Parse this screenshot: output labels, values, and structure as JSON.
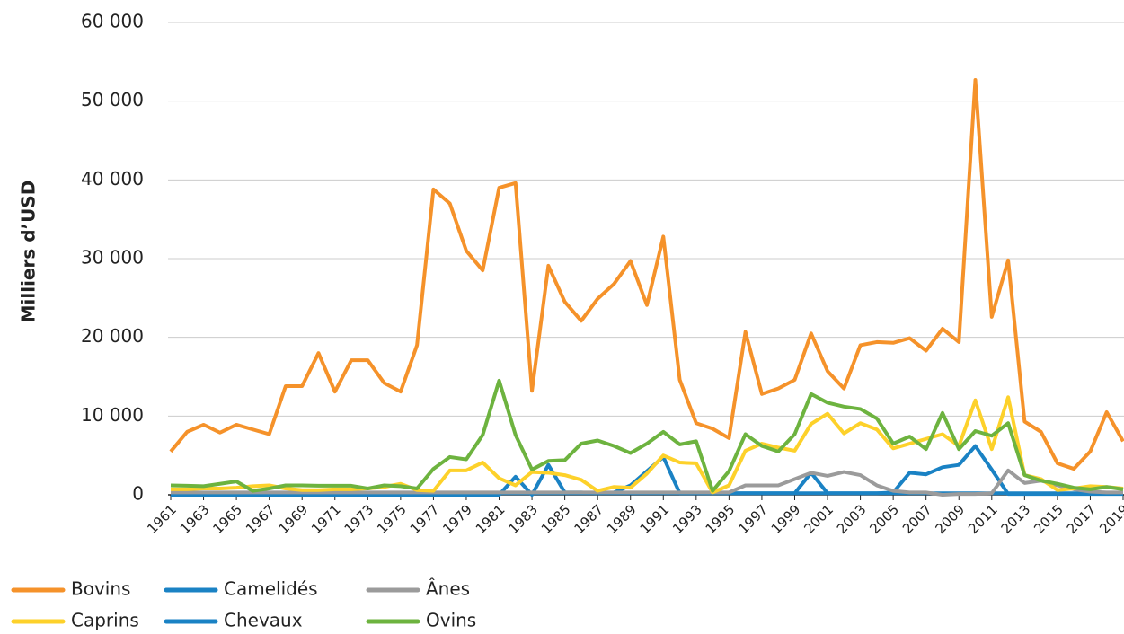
{
  "chart_data": {
    "type": "line",
    "y_label": "Milliers d’USD",
    "x": [
      1961,
      1962,
      1963,
      1964,
      1965,
      1966,
      1967,
      1968,
      1969,
      1970,
      1971,
      1972,
      1973,
      1974,
      1975,
      1976,
      1977,
      1978,
      1979,
      1980,
      1981,
      1982,
      1983,
      1984,
      1985,
      1986,
      1987,
      1988,
      1989,
      1990,
      1991,
      1992,
      1993,
      1994,
      1995,
      1996,
      1997,
      1998,
      1999,
      2000,
      2001,
      2002,
      2003,
      2004,
      2005,
      2006,
      2007,
      2008,
      2009,
      2010,
      2011,
      2012,
      2013,
      2014,
      2015,
      2016,
      2017,
      2018,
      2019
    ],
    "xlim": [
      1961,
      2019
    ],
    "xticks": [
      1961,
      1963,
      1965,
      1967,
      1969,
      1971,
      1973,
      1975,
      1977,
      1979,
      1981,
      1983,
      1985,
      1987,
      1989,
      1991,
      1993,
      1995,
      1997,
      1999,
      2001,
      2003,
      2005,
      2007,
      2009,
      2011,
      2013,
      2015,
      2017,
      2019
    ],
    "ylim": [
      0,
      60000
    ],
    "yticks": [
      0,
      {
        "value": 10000,
        "label": "10 000"
      },
      {
        "value": 20000,
        "label": "20 000"
      },
      {
        "value": 30000,
        "label": "30 000"
      },
      {
        "value": 40000,
        "label": "40 000"
      },
      {
        "value": 50000,
        "label": "50 000"
      },
      {
        "value": 60000,
        "label": "60 000"
      }
    ],
    "grid": true,
    "legend": "bottom",
    "series": [
      {
        "name": "Bovins",
        "color": "#f5922a",
        "values": [
          5500,
          8000,
          8900,
          7900,
          8900,
          8300,
          7700,
          13800,
          13800,
          18000,
          13100,
          17100,
          17100,
          14200,
          13100,
          19000,
          38800,
          37000,
          31000,
          28500,
          39000,
          39600,
          13200,
          29100,
          24500,
          22100,
          24900,
          26800,
          29700,
          24100,
          32800,
          14600,
          9100,
          8400,
          7200,
          20700,
          12800,
          13500,
          14600,
          20500,
          15700,
          13500,
          19000,
          19400,
          19300,
          19900,
          18300,
          21100,
          19400,
          52700,
          22600,
          29800,
          9300,
          8000,
          4000,
          3300,
          5500,
          10500,
          6800
        ]
      },
      {
        "name": "Camelidés",
        "color": "#1a82c4",
        "values": [
          0,
          0,
          0,
          0,
          0,
          0,
          0,
          0,
          0,
          0,
          0,
          0,
          0,
          0,
          0,
          0,
          0,
          0,
          0,
          0,
          0,
          2300,
          0,
          3800,
          300,
          300,
          200,
          300,
          1200,
          3000,
          4800,
          200,
          200,
          200,
          200,
          200,
          200,
          200,
          200,
          2800,
          200,
          200,
          200,
          200,
          300,
          2800,
          2600,
          3500,
          3800,
          6200,
          3200,
          100,
          100,
          100,
          100,
          100,
          100,
          100,
          100
        ]
      },
      {
        "name": "Ânes",
        "color": "#9b9b9b",
        "values": [
          300,
          300,
          300,
          300,
          300,
          300,
          300,
          300,
          300,
          300,
          300,
          300,
          300,
          300,
          300,
          300,
          300,
          300,
          300,
          300,
          300,
          300,
          300,
          300,
          300,
          300,
          300,
          300,
          300,
          300,
          300,
          300,
          300,
          300,
          300,
          1200,
          1200,
          1200,
          2000,
          2800,
          2400,
          2900,
          2500,
          1200,
          500,
          300,
          300,
          0,
          100,
          100,
          200,
          3100,
          1500,
          1800,
          1200,
          700,
          400,
          300,
          300
        ]
      },
      {
        "name": "Caprins",
        "color": "#fdd12a",
        "values": [
          700,
          700,
          800,
          800,
          900,
          1100,
          1200,
          800,
          600,
          600,
          700,
          700,
          800,
          1000,
          1400,
          600,
          500,
          3100,
          3100,
          4100,
          2100,
          1200,
          2900,
          2800,
          2500,
          1900,
          500,
          1000,
          900,
          2700,
          5000,
          4100,
          4000,
          300,
          1200,
          5600,
          6500,
          6000,
          5600,
          9000,
          10300,
          7800,
          9100,
          8300,
          5900,
          6500,
          7100,
          7700,
          6200,
          12000,
          5800,
          12400,
          2500,
          2000,
          600,
          800,
          1100,
          1000,
          800
        ]
      },
      {
        "name": "Chevaux",
        "color": "#1a82c4",
        "values": [
          200,
          200,
          200,
          200,
          200,
          200,
          200,
          200,
          200,
          200,
          200,
          200,
          200,
          200,
          200,
          200,
          200,
          200,
          200,
          200,
          200,
          200,
          200,
          200,
          200,
          200,
          200,
          200,
          200,
          200,
          200,
          200,
          200,
          200,
          200,
          200,
          200,
          200,
          200,
          200,
          200,
          200,
          200,
          200,
          200,
          200,
          200,
          200,
          200,
          200,
          200,
          200,
          200,
          200,
          200,
          200,
          200,
          200,
          200
        ]
      },
      {
        "name": "Ovins",
        "color": "#6db33f",
        "values": [
          1200,
          1150,
          1100,
          1400,
          1700,
          500,
          800,
          1200,
          1200,
          1150,
          1150,
          1150,
          800,
          1200,
          1100,
          800,
          3300,
          4800,
          4500,
          7600,
          14500,
          7600,
          3200,
          4300,
          4400,
          6500,
          6900,
          6200,
          5300,
          6500,
          8000,
          6400,
          6800,
          500,
          3000,
          7700,
          6200,
          5500,
          7700,
          12800,
          11700,
          11200,
          10900,
          9700,
          6500,
          7400,
          5800,
          10400,
          5800,
          8100,
          7500,
          9100,
          2500,
          1800,
          1400,
          900,
          700,
          1000,
          700
        ]
      }
    ]
  }
}
